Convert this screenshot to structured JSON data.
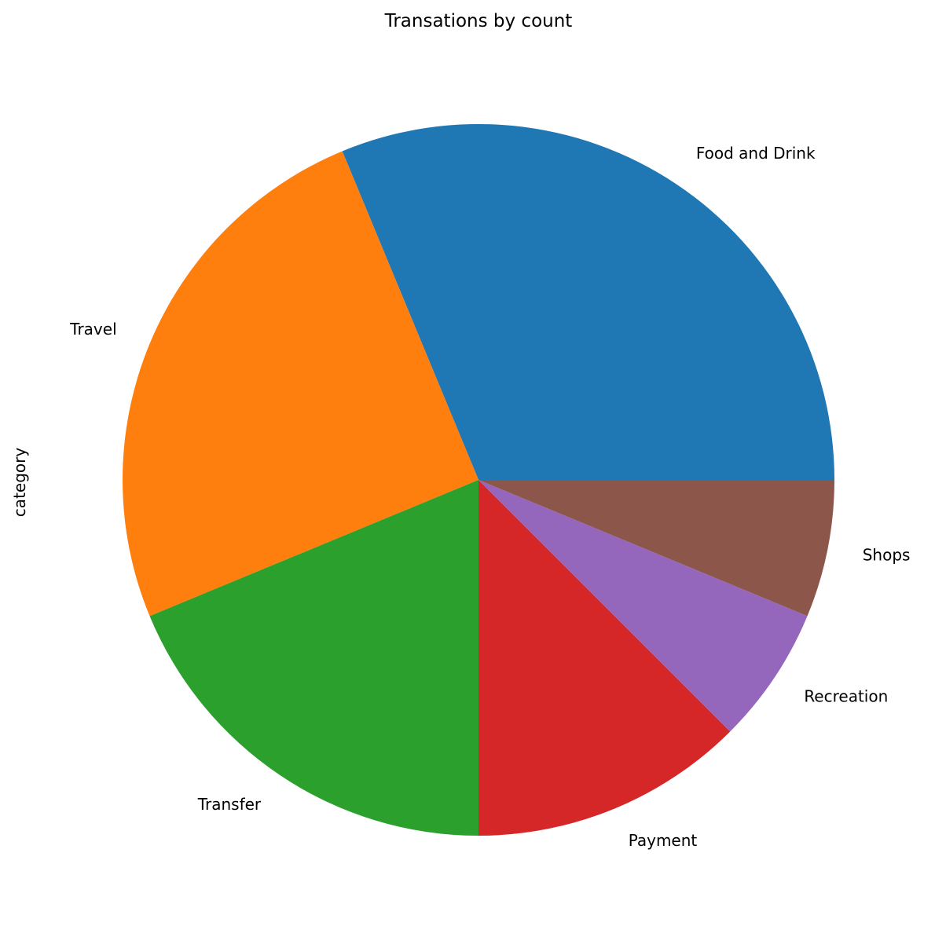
{
  "chart_data": {
    "type": "pie",
    "title": "Transations by count",
    "ylabel": "category",
    "xlabel": "",
    "start_angle_deg": 0,
    "direction": "counterclockwise",
    "legend": "none",
    "slices": [
      {
        "label": "Food and Drink",
        "value": 5,
        "color": "#1f77b4"
      },
      {
        "label": "Travel",
        "value": 4,
        "color": "#ff7f0e"
      },
      {
        "label": "Transfer",
        "value": 3,
        "color": "#2ca02c"
      },
      {
        "label": "Payment",
        "value": 2,
        "color": "#d62728"
      },
      {
        "label": "Recreation",
        "value": 1,
        "color": "#9467bd"
      },
      {
        "label": "Shops",
        "value": 1,
        "color": "#8c564b"
      }
    ]
  }
}
